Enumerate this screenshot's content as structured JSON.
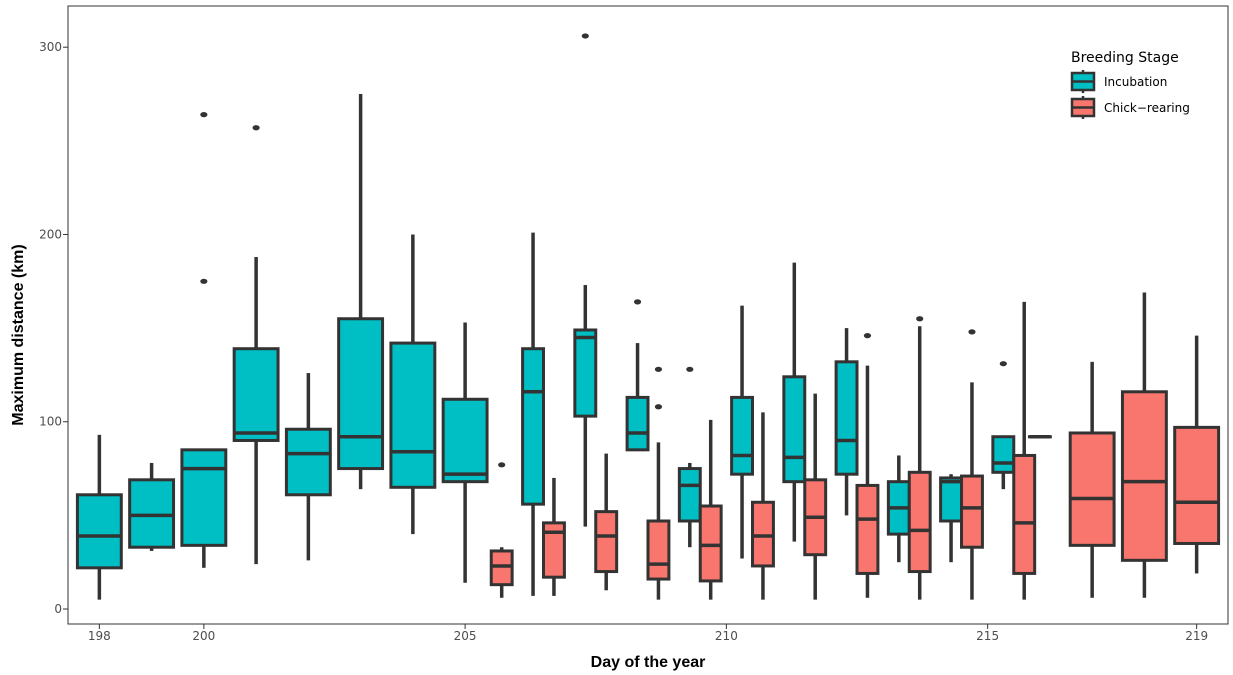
{
  "chart_data": {
    "type": "boxplot",
    "xlabel": "Day of the year",
    "ylabel": "Maximum distance (km)",
    "xlim": [
      197.4,
      219.6
    ],
    "ylim": [
      -8,
      322
    ],
    "x_ticks": [
      {
        "value": 198,
        "label": "198"
      },
      {
        "value": 200,
        "label": "200"
      },
      {
        "value": 205,
        "label": "205"
      },
      {
        "value": 210,
        "label": "210"
      },
      {
        "value": 215,
        "label": "215"
      },
      {
        "value": 219,
        "label": "219"
      }
    ],
    "y_ticks": [
      {
        "value": 0,
        "label": "0"
      },
      {
        "value": 100,
        "label": "100"
      },
      {
        "value": 200,
        "label": "200"
      },
      {
        "value": 300,
        "label": "300"
      }
    ],
    "grid": false,
    "legend": {
      "title": "Breeding Stage",
      "position": "top-right",
      "entries": [
        {
          "name": "Incubation",
          "color": "#00bfc4"
        },
        {
          "name": "Chick−rearing",
          "color": "#f8766d"
        }
      ]
    },
    "series": [
      {
        "name": "Incubation",
        "color": "#00bfc4",
        "boxes": [
          {
            "x": 198.0,
            "w": 0.84,
            "min": 5,
            "q1": 22,
            "median": 39,
            "q3": 61,
            "max": 93,
            "outliers": []
          },
          {
            "x": 199.0,
            "w": 0.84,
            "min": 31,
            "q1": 33,
            "median": 50,
            "q3": 69,
            "max": 78,
            "outliers": []
          },
          {
            "x": 200.0,
            "w": 0.84,
            "min": 22,
            "q1": 34,
            "median": 75,
            "q3": 85,
            "max": 85,
            "outliers": [
              175,
              264
            ]
          },
          {
            "x": 201.0,
            "w": 0.84,
            "min": 24,
            "q1": 90,
            "median": 94,
            "q3": 139,
            "max": 188,
            "outliers": [
              257
            ]
          },
          {
            "x": 202.0,
            "w": 0.84,
            "min": 26,
            "q1": 61,
            "median": 83,
            "q3": 96,
            "max": 126,
            "outliers": []
          },
          {
            "x": 203.0,
            "w": 0.84,
            "min": 64,
            "q1": 75,
            "median": 92,
            "q3": 155,
            "max": 275,
            "outliers": []
          },
          {
            "x": 204.0,
            "w": 0.84,
            "min": 40,
            "q1": 65,
            "median": 84,
            "q3": 142,
            "max": 200,
            "outliers": []
          },
          {
            "x": 205.0,
            "w": 0.84,
            "min": 14,
            "q1": 68,
            "median": 72,
            "q3": 112,
            "max": 153,
            "outliers": []
          },
          {
            "x": 206.3,
            "w": 0.4,
            "min": 7,
            "q1": 56,
            "median": 116,
            "q3": 139,
            "max": 201,
            "outliers": []
          },
          {
            "x": 207.3,
            "w": 0.4,
            "min": 44,
            "q1": 103,
            "median": 145,
            "q3": 149,
            "max": 173,
            "outliers": [
              306
            ]
          },
          {
            "x": 208.3,
            "w": 0.4,
            "min": 85,
            "q1": 85,
            "median": 94,
            "q3": 113,
            "max": 142,
            "outliers": [
              164
            ]
          },
          {
            "x": 209.3,
            "w": 0.4,
            "min": 33,
            "q1": 47,
            "median": 66,
            "q3": 75,
            "max": 78,
            "outliers": [
              128
            ]
          },
          {
            "x": 210.3,
            "w": 0.4,
            "min": 27,
            "q1": 72,
            "median": 82,
            "q3": 113,
            "max": 162,
            "outliers": []
          },
          {
            "x": 211.3,
            "w": 0.4,
            "min": 36,
            "q1": 68,
            "median": 81,
            "q3": 124,
            "max": 185,
            "outliers": []
          },
          {
            "x": 212.3,
            "w": 0.4,
            "min": 50,
            "q1": 72,
            "median": 90,
            "q3": 132,
            "max": 150,
            "outliers": []
          },
          {
            "x": 213.3,
            "w": 0.4,
            "min": 25,
            "q1": 40,
            "median": 54,
            "q3": 68,
            "max": 82,
            "outliers": []
          },
          {
            "x": 214.3,
            "w": 0.4,
            "min": 25,
            "q1": 47,
            "median": 68,
            "q3": 70,
            "max": 72,
            "outliers": []
          },
          {
            "x": 215.3,
            "w": 0.4,
            "min": 64,
            "q1": 73,
            "median": 78,
            "q3": 92,
            "max": 92,
            "outliers": [
              131
            ]
          }
        ]
      },
      {
        "name": "Chick−rearing",
        "color": "#f8766d",
        "boxes": [
          {
            "x": 205.7,
            "w": 0.4,
            "min": 6,
            "q1": 13,
            "median": 23,
            "q3": 31,
            "max": 33,
            "outliers": [
              77
            ]
          },
          {
            "x": 206.7,
            "w": 0.4,
            "min": 7,
            "q1": 17,
            "median": 41,
            "q3": 46,
            "max": 70,
            "outliers": []
          },
          {
            "x": 207.7,
            "w": 0.4,
            "min": 10,
            "q1": 20,
            "median": 39,
            "q3": 52,
            "max": 83,
            "outliers": []
          },
          {
            "x": 208.7,
            "w": 0.4,
            "min": 5,
            "q1": 16,
            "median": 24,
            "q3": 47,
            "max": 89,
            "outliers": [
              108,
              128
            ]
          },
          {
            "x": 209.7,
            "w": 0.4,
            "min": 5,
            "q1": 15,
            "median": 34,
            "q3": 55,
            "max": 101,
            "outliers": []
          },
          {
            "x": 210.7,
            "w": 0.4,
            "min": 5,
            "q1": 23,
            "median": 39,
            "q3": 57,
            "max": 105,
            "outliers": []
          },
          {
            "x": 211.7,
            "w": 0.4,
            "min": 5,
            "q1": 29,
            "median": 49,
            "q3": 69,
            "max": 115,
            "outliers": []
          },
          {
            "x": 212.7,
            "w": 0.4,
            "min": 6,
            "q1": 19,
            "median": 48,
            "q3": 66,
            "max": 130,
            "outliers": [
              146
            ]
          },
          {
            "x": 213.7,
            "w": 0.4,
            "min": 5,
            "q1": 20,
            "median": 42,
            "q3": 73,
            "max": 151,
            "outliers": [
              155
            ]
          },
          {
            "x": 214.7,
            "w": 0.4,
            "min": 5,
            "q1": 33,
            "median": 54,
            "q3": 71,
            "max": 121,
            "outliers": [
              148
            ]
          },
          {
            "x": 215.7,
            "w": 0.4,
            "min": 5,
            "q1": 19,
            "median": 46,
            "q3": 82,
            "max": 164,
            "outliers": []
          },
          {
            "x": 216.0,
            "w": 0.4,
            "min": 92,
            "q1": 92,
            "median": 92,
            "q3": 92,
            "max": 92,
            "outliers": []
          },
          {
            "x": 217.0,
            "w": 0.84,
            "min": 6,
            "q1": 34,
            "median": 59,
            "q3": 94,
            "max": 132,
            "outliers": []
          },
          {
            "x": 218.0,
            "w": 0.84,
            "min": 6,
            "q1": 26,
            "median": 68,
            "q3": 116,
            "max": 169,
            "outliers": []
          },
          {
            "x": 219.0,
            "w": 0.84,
            "min": 19,
            "q1": 35,
            "median": 57,
            "q3": 97,
            "max": 146,
            "outliers": []
          }
        ]
      }
    ]
  }
}
